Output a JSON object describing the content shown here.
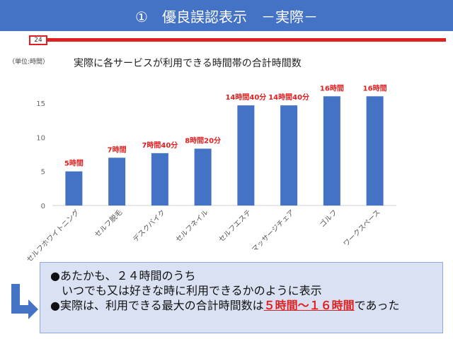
{
  "header": {
    "title": "①　優良誤認表示　－実際－"
  },
  "timeline": {
    "label": "24"
  },
  "unit_label": "（単位:時間）",
  "note": {
    "line1": "●あたかも、２４時間のうち",
    "line2": "いつでも又は好きな時に利用できるかのように表示",
    "line3_pre": "●実際は、利用できる最大の合計時間数は",
    "line3_em": "５時間～１６時間",
    "line3_post": "であった"
  },
  "colors": {
    "banner": "#4472c4",
    "bar": "#4472c4",
    "accent": "#e02020",
    "note_bg": "#d9e1f2"
  },
  "chart_data": {
    "type": "bar",
    "title": "実際に各サービスが利用できる時間帯の合計時間数",
    "categories": [
      "セルフホワイトニング",
      "セルフ脱毛",
      "デスクバイク",
      "セルフネイル",
      "セルフエステ",
      "マッサージチェア",
      "ゴルフ",
      "ワークスペース"
    ],
    "values": [
      5,
      7,
      7.67,
      8.33,
      14.67,
      14.67,
      16,
      16
    ],
    "data_labels": [
      "5時間",
      "7時間",
      "7時間40分",
      "8時間20分",
      "14時間40分",
      "14時間40分",
      "16時間",
      "16時間"
    ],
    "yticks": [
      0,
      5,
      10,
      15
    ],
    "ylim": [
      0,
      17.5
    ],
    "grid": false,
    "legend": "none"
  }
}
